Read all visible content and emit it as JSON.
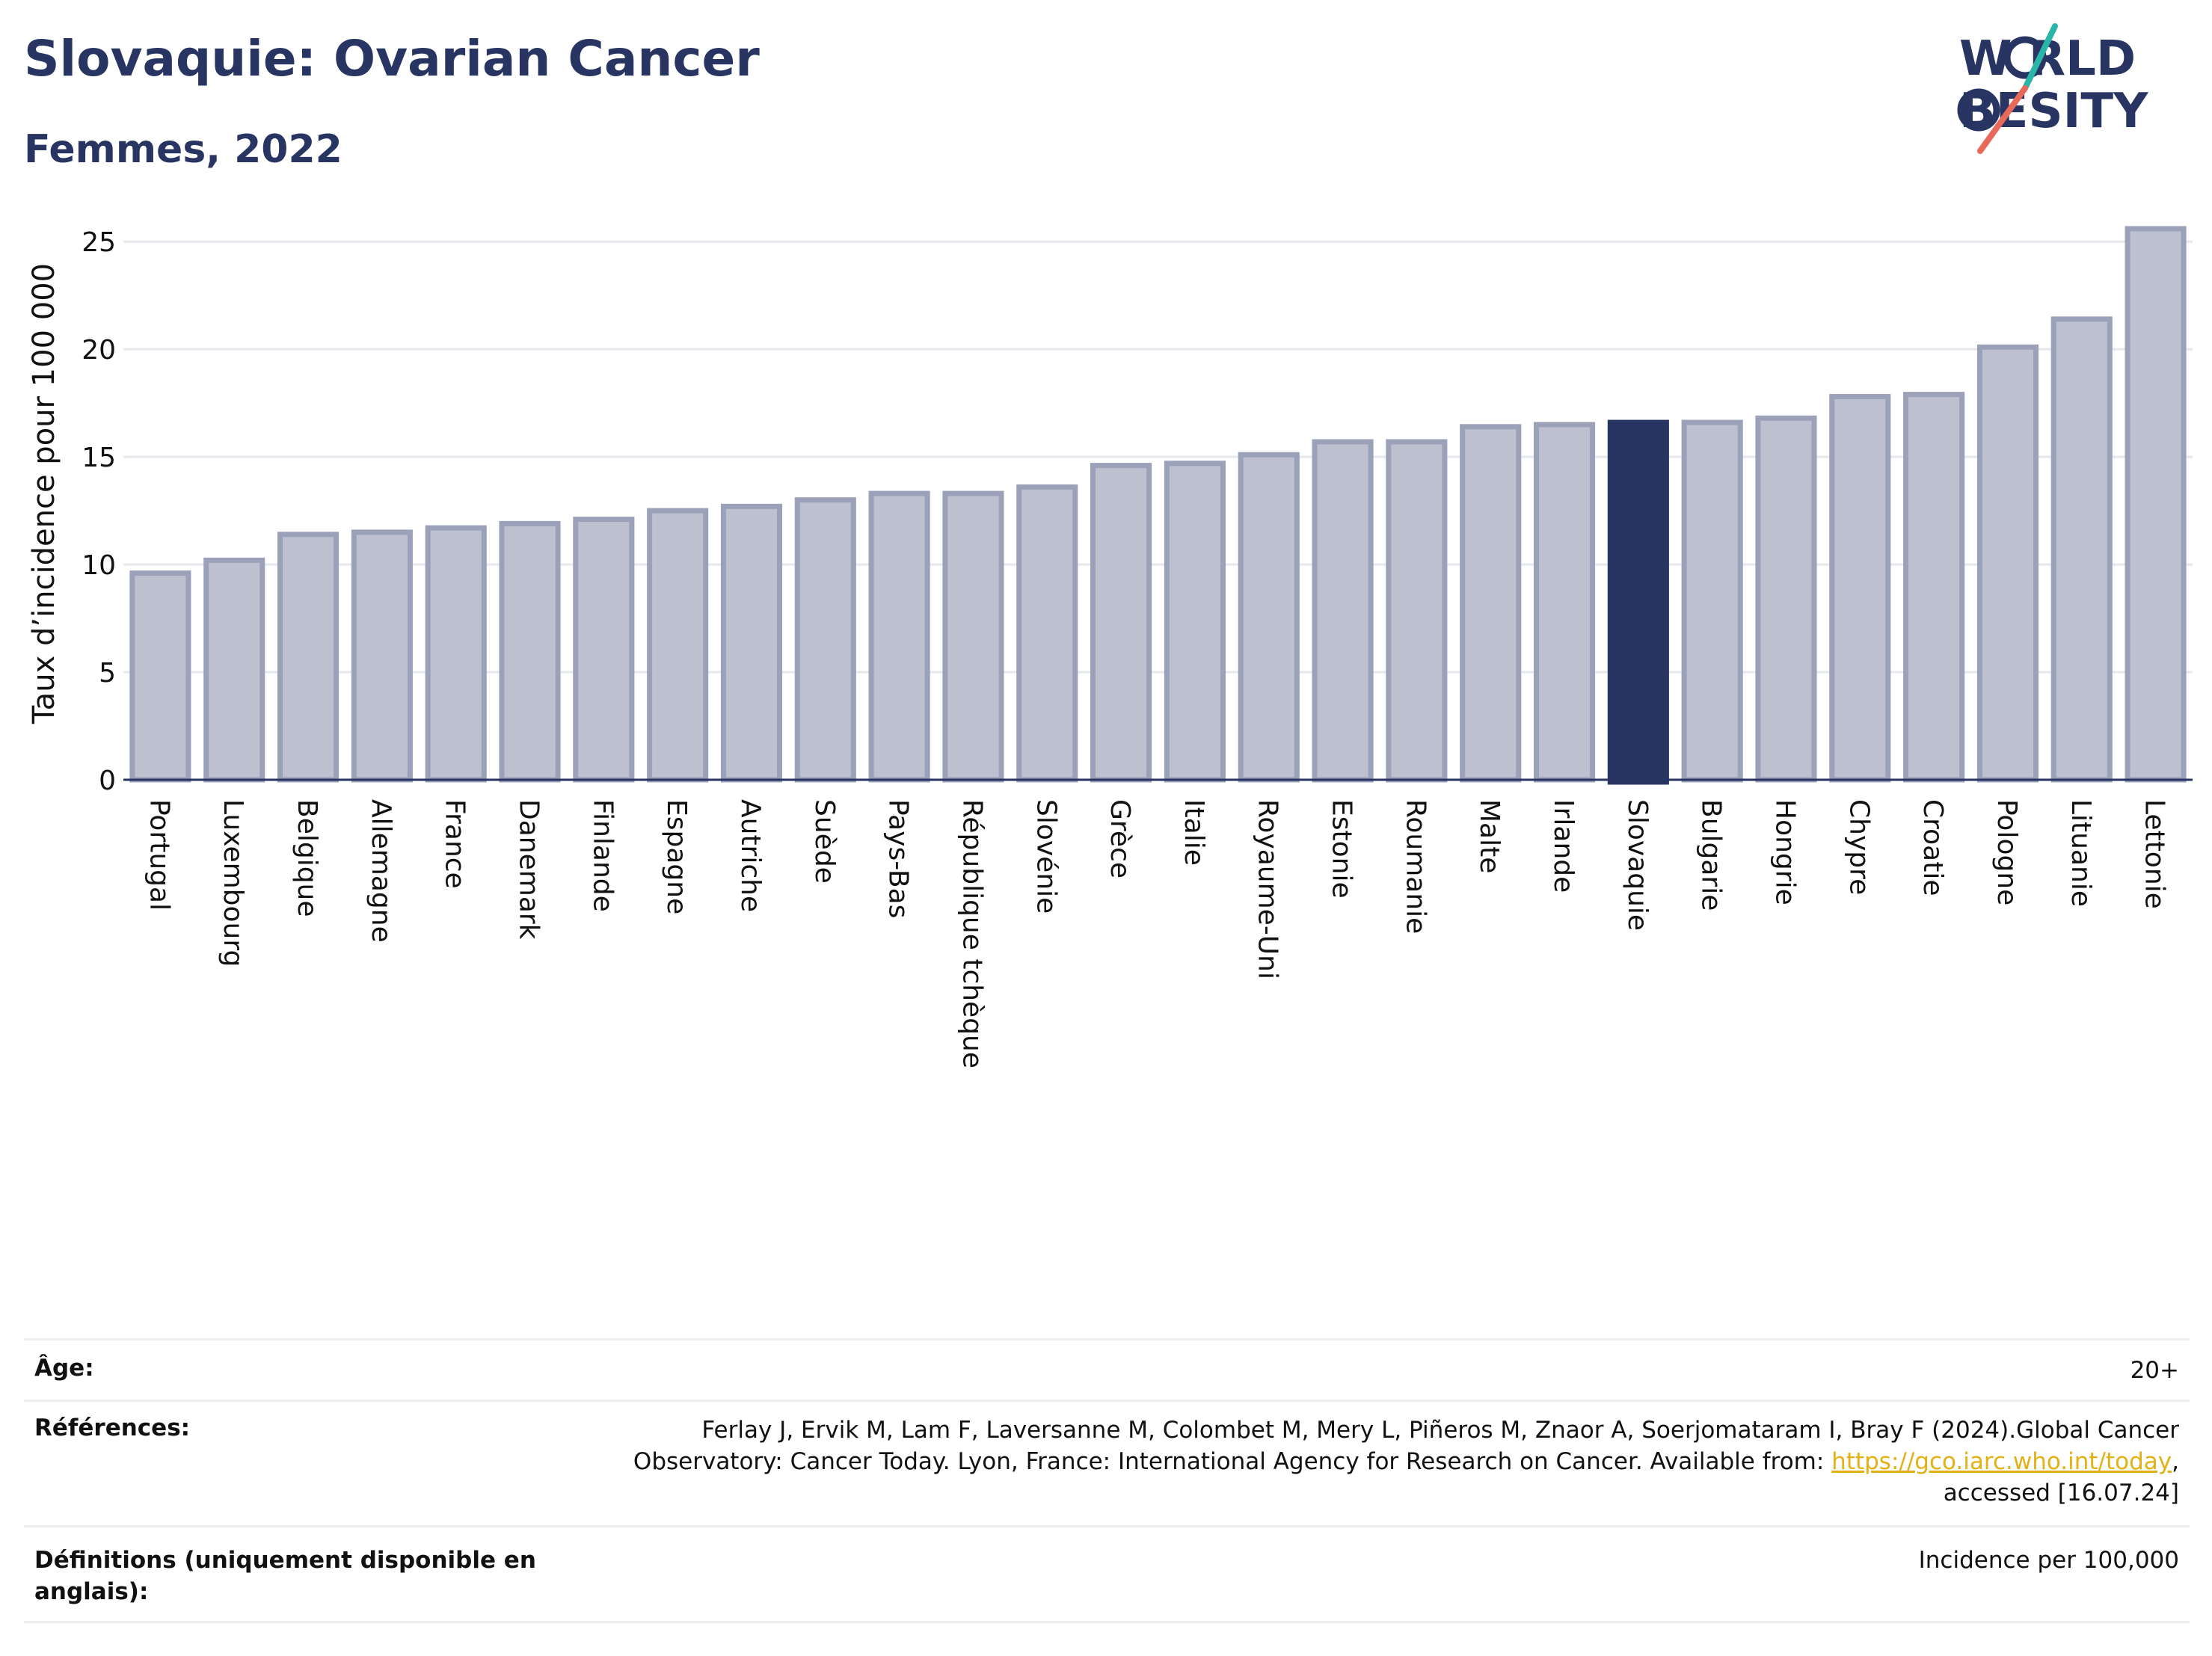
{
  "header": {
    "title": "Slovaquie: Ovarian Cancer",
    "subtitle": "Femmes, 2022"
  },
  "logo": {
    "line1": "W RLD",
    "line2": "BESITY",
    "accent_colors": [
      "#2bb5a8",
      "#e8685a"
    ]
  },
  "chart_data": {
    "type": "bar",
    "ylabel": "Taux d’incidence pour 100 000",
    "ylim": [
      0,
      26.5
    ],
    "yticks": [
      0,
      5,
      10,
      15,
      20,
      25
    ],
    "grid": true,
    "highlight": "Slovaquie",
    "colors": {
      "bar": "#bdc1cf",
      "bar_edge": "#9aa1b8",
      "highlight": "#283461",
      "grid": "#e6e8ee",
      "axis": "#283461"
    },
    "categories": [
      "Portugal",
      "Luxembourg",
      "Belgique",
      "Allemagne",
      "France",
      "Danemark",
      "Finlande",
      "Espagne",
      "Autriche",
      "Suède",
      "Pays-Bas",
      "République tchèque",
      "Slovénie",
      "Grèce",
      "Italie",
      "Royaume-Uni",
      "Estonie",
      "Roumanie",
      "Malte",
      "Irlande",
      "Slovaquie",
      "Bulgarie",
      "Hongrie",
      "Chypre",
      "Croatie",
      "Pologne",
      "Lituanie",
      "Lettonie"
    ],
    "values": [
      9.6,
      10.2,
      11.4,
      11.5,
      11.7,
      11.9,
      12.1,
      12.5,
      12.7,
      13.0,
      13.3,
      13.3,
      13.6,
      14.6,
      14.7,
      15.1,
      15.7,
      15.7,
      16.4,
      16.5,
      16.6,
      16.6,
      16.8,
      17.8,
      17.9,
      20.1,
      21.4,
      25.6
    ]
  },
  "info": {
    "age_label": "Âge:",
    "age_value": "20+",
    "refs_label": "Références:",
    "refs_line1": "Ferlay J, Ervik M, Lam F, Laversanne M, Colombet M, Mery L, Piñeros M, Znaor A, Soerjomataram I, Bray F (2024).Global Cancer",
    "refs_line2": "Observatory: Cancer Today. Lyon, France: International Agency for Research on Cancer. Available from: ",
    "refs_link": "https://gco.iarc.who.int/today",
    "refs_line2_end": ",",
    "refs_line3": "accessed [16.07.24]",
    "defs_label_line1": "Définitions (uniquement disponible en",
    "defs_label_line2": "anglais):",
    "defs_value": "Incidence per 100,000"
  }
}
